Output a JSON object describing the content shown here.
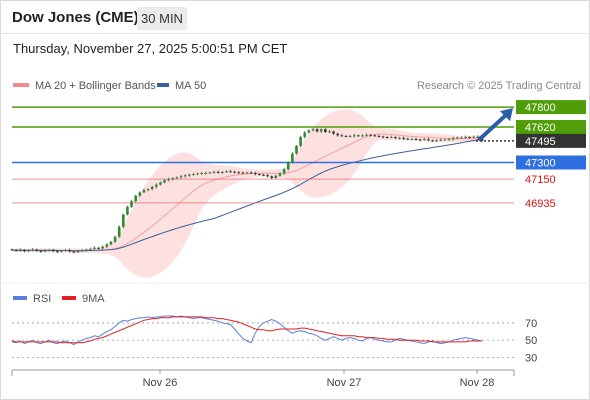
{
  "header": {
    "title": "Dow Jones (CME)",
    "timeframe": "30 MIN",
    "datetime": "Thursday, November 27, 2025 5:00:51 PM CET"
  },
  "legend": {
    "items": [
      {
        "label": "MA 20 + Bollinger Bands",
        "color": "#f08c8c"
      },
      {
        "label": "MA 50",
        "color": "#3a5f9a"
      }
    ],
    "credit": "Research © 2025 Trading Central"
  },
  "chart_data": [
    {
      "type": "candlestick",
      "ylim": [
        46420,
        47900
      ],
      "x_labels": [
        "Nov 26",
        "Nov 27",
        "Nov 28"
      ],
      "price_levels": [
        {
          "value": 47800,
          "label": "47800",
          "kind": "resistance",
          "color": "#4f9e07"
        },
        {
          "value": 47620,
          "label": "47620",
          "kind": "resistance",
          "color": "#4f9e07"
        },
        {
          "value": 47495,
          "label": "47495",
          "kind": "last",
          "color": "#333333"
        },
        {
          "value": 47300,
          "label": "47300",
          "kind": "pivot",
          "color": "#2f6fe0"
        },
        {
          "value": 47150,
          "label": "47150",
          "kind": "support",
          "color": "#e06666"
        },
        {
          "value": 46935,
          "label": "46935",
          "kind": "support",
          "color": "#e06666"
        }
      ],
      "close": [
        46510,
        46505,
        46512,
        46500,
        46508,
        46515,
        46503,
        46498,
        46506,
        46512,
        46500,
        46495,
        46505,
        46510,
        46498,
        46490,
        46502,
        46508,
        46515,
        46520,
        46530,
        46525,
        46540,
        46560,
        46585,
        46630,
        46720,
        46830,
        46900,
        46950,
        47000,
        47030,
        47050,
        47060,
        47080,
        47100,
        47120,
        47140,
        47150,
        47160,
        47165,
        47175,
        47185,
        47190,
        47195,
        47200,
        47205,
        47205,
        47210,
        47215,
        47210,
        47215,
        47220,
        47218,
        47212,
        47208,
        47205,
        47210,
        47205,
        47195,
        47190,
        47185,
        47175,
        47160,
        47180,
        47200,
        47240,
        47300,
        47380,
        47450,
        47530,
        47570,
        47590,
        47600,
        47580,
        47600,
        47575,
        47580,
        47560,
        47545,
        47540,
        47535,
        47540,
        47545,
        47540,
        47545,
        47550,
        47545,
        47540,
        47535,
        47530,
        47528,
        47530,
        47520,
        47522,
        47515,
        47510,
        47512,
        47508,
        47505,
        47510,
        47500,
        47498,
        47500,
        47505,
        47508,
        47510,
        47520,
        47525,
        47525,
        47530,
        47528,
        47532,
        47530,
        47495
      ],
      "indicators": [
        "MA 20 + Bollinger Bands",
        "MA 50"
      ]
    },
    {
      "type": "line",
      "series": [
        {
          "name": "RSI",
          "color": "#5b7fe0"
        },
        {
          "name": "9MA",
          "color": "#e02020"
        }
      ],
      "ylim": [
        20,
        85
      ],
      "levels": [
        70,
        50,
        30
      ],
      "rsi": [
        48,
        47,
        49,
        46,
        48,
        50,
        47,
        46,
        48,
        50,
        47,
        46,
        48,
        49,
        47,
        45,
        48,
        50,
        52,
        53,
        55,
        54,
        57,
        60,
        62,
        66,
        70,
        73,
        72,
        74,
        75,
        76,
        76,
        77,
        76,
        77,
        77,
        78,
        78,
        78,
        77,
        78,
        77,
        76,
        75,
        76,
        76,
        75,
        74,
        73,
        72,
        70,
        69,
        68,
        63,
        57,
        52,
        49,
        47,
        58,
        66,
        70,
        72,
        74,
        72,
        69,
        65,
        61,
        58,
        60,
        61,
        60,
        58,
        57,
        55,
        52,
        50,
        52,
        54,
        52,
        50,
        52,
        53,
        52,
        50,
        49,
        52,
        53,
        51,
        50,
        49,
        48,
        48,
        50,
        52,
        51,
        50,
        49,
        48,
        47,
        46,
        48,
        49,
        47,
        46,
        47,
        48,
        50,
        51,
        52,
        53,
        52,
        51,
        50,
        49
      ],
      "ma9": [
        49,
        48,
        48,
        48,
        48,
        48,
        48,
        48,
        48,
        48,
        48,
        48,
        47,
        47,
        47,
        47,
        47,
        47,
        48,
        49,
        51,
        52,
        53,
        55,
        57,
        59,
        61,
        63,
        65,
        67,
        69,
        71,
        73,
        74,
        75,
        75,
        76,
        76,
        76,
        77,
        77,
        77,
        77,
        77,
        77,
        77,
        77,
        76,
        76,
        76,
        75,
        75,
        74,
        73,
        72,
        71,
        69,
        67,
        65,
        63,
        62,
        62,
        61,
        61,
        62,
        63,
        63,
        63,
        63,
        63,
        64,
        64,
        63,
        62,
        61,
        60,
        59,
        58,
        57,
        56,
        55,
        55,
        55,
        55,
        54,
        54,
        53,
        53,
        53,
        52,
        52,
        51,
        51,
        51,
        50,
        50,
        50,
        50,
        50,
        49,
        49,
        49,
        48,
        48,
        48,
        48,
        48,
        48,
        48,
        48,
        48,
        49,
        49,
        49,
        49
      ]
    }
  ]
}
